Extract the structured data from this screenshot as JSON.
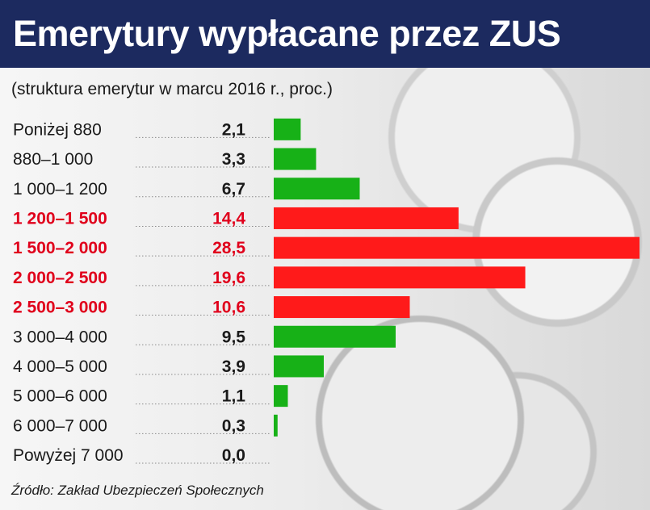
{
  "header": {
    "title": "Emerytury wypłacane przez ZUS",
    "subtitle": "(struktura emerytur w marcu 2016 r., proc.)"
  },
  "source": "Źródło: Zakład Ubezpieczeń Społecznych",
  "colors": {
    "title_background": "#1c2a5f",
    "bar_normal": "#17b117",
    "bar_highlight": "#ff1a1a",
    "label_highlight": "#e0001b",
    "label_normal": "#1a1a1a"
  },
  "chart_data": {
    "type": "bar",
    "orientation": "horizontal",
    "title": "Emerytury wypłacane przez ZUS",
    "subtitle": "(struktura emerytur w marcu 2016 r., proc.)",
    "categories": [
      "Poniżej 880",
      "880–1 000",
      "1 000–1 200",
      "1 200–1 500",
      "1 500–2 000",
      "2 000–2 500",
      "2 500–3 000",
      "3 000–4 000",
      "4 000–5 000",
      "5 000–6 000",
      "6 000–7 000",
      "Powyżej 7 000"
    ],
    "values": [
      2.1,
      3.3,
      6.7,
      14.4,
      28.5,
      19.6,
      10.6,
      9.5,
      3.9,
      1.1,
      0.3,
      0.0
    ],
    "value_labels": [
      "2,1",
      "3,3",
      "6,7",
      "14,4",
      "28,5",
      "19,6",
      "10,6",
      "9,5",
      "3,9",
      "1,1",
      "0,3",
      "0,0"
    ],
    "highlighted": [
      false,
      false,
      false,
      true,
      true,
      true,
      true,
      false,
      false,
      false,
      false,
      false
    ],
    "xlim": [
      0,
      28.5
    ],
    "grid": false,
    "legend": "none"
  }
}
